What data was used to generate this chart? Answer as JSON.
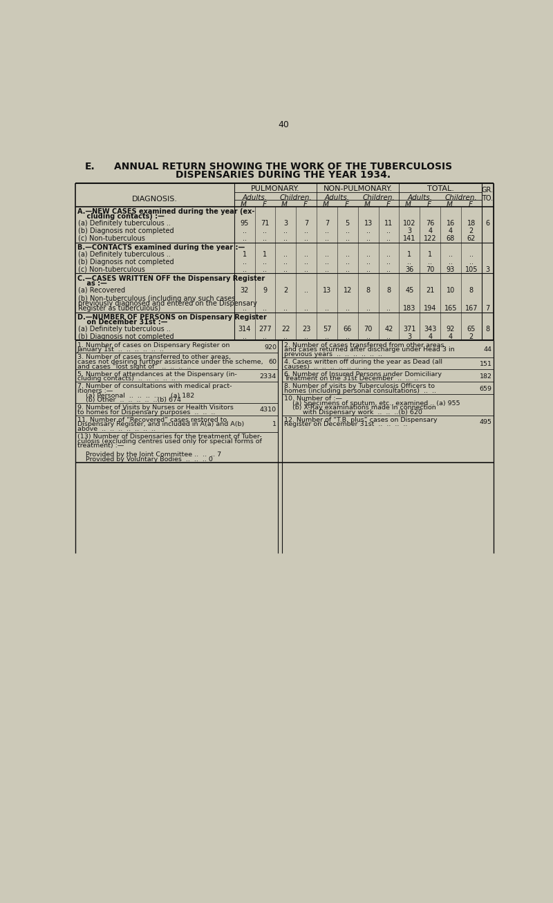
{
  "page_number": "40",
  "bg_color": "#ccc9b8",
  "text_color": "#1a1a1a",
  "title_e": "E.",
  "title_main": "ANNUAL RETURN SHOWING THE WORK OF THE TUBERCULOSIS",
  "title_sub": "DISPENSARIES DURING THE YEAR 1934.",
  "header_row1": [
    "PULMONARY.",
    "NON-PULMONARY.",
    "TOTAL."
  ],
  "header_row2": [
    "DIAGNOSIS.",
    "Adults.",
    "Children.",
    "Adults.",
    "Children.",
    "Adults.",
    "Children.",
    "GR.\nTO."
  ],
  "header_row3": [
    "M.",
    "F.",
    "M.",
    "F.",
    "M.",
    "F.",
    "M.",
    "F.",
    "M.",
    "F.",
    "M.",
    "F."
  ],
  "section_a": {
    "title1": "A.—NEW CASES examined during the year (ex-",
    "title2": "    cluding contacts) :—",
    "rows": [
      {
        "label": "(a) Definitely tuberculous ..",
        "vals": [
          "95",
          "71",
          "3",
          "7",
          "7",
          "5",
          "13",
          "11",
          "102",
          "76",
          "16",
          "18"
        ],
        "gr": "6"
      },
      {
        "label": "(b) Diagnosis not completed",
        "vals": [
          "..",
          "..",
          "..",
          "..",
          "..",
          "..",
          "..",
          "..",
          "3",
          "4",
          "4",
          "2"
        ],
        "gr": ""
      },
      {
        "label": "(c) Non-tuberculous",
        "vals": [
          "..",
          "..",
          "..",
          "..",
          "..",
          "..",
          "..",
          "..",
          "141",
          "122",
          "68",
          "62"
        ],
        "gr": ""
      }
    ]
  },
  "section_b": {
    "title1": "B.—CONTACTS examined during the year :—",
    "rows": [
      {
        "label": "(a) Definitely tuberculous ..",
        "vals": [
          "1",
          "1",
          "..",
          "..",
          "..",
          "..",
          "..",
          "..",
          "1",
          "1",
          "..",
          ".."
        ],
        "gr": ""
      },
      {
        "label": "(b) Diagnosis not completed",
        "vals": [
          "..",
          "..",
          "..",
          "..",
          "..",
          "..",
          "..",
          "..",
          "..",
          "..",
          "..",
          ".."
        ],
        "gr": ""
      },
      {
        "label": "(c) Non-tuberculous",
        "vals": [
          "..",
          "..",
          "..",
          "..",
          "..",
          "..",
          "..",
          "..",
          "36",
          "70",
          "93",
          "105"
        ],
        "gr": "3"
      }
    ]
  },
  "section_c": {
    "title1": "C.—CASES WRITTEN OFF the Dispensary Register",
    "title2": "    as :—",
    "rows": [
      {
        "label": "(a) Recovered",
        "vals": [
          "32",
          "9",
          "2",
          "..",
          "13",
          "12",
          "8",
          "8",
          "45",
          "21",
          "10",
          "8"
        ],
        "gr": ""
      },
      {
        "label": "(b) Non-tuberculous (including any such cases",
        "label2": "previously diagnosed and entered on the Dispensary",
        "label3": "Register as tuberculous)",
        "vals": [
          "..",
          "..",
          "..",
          "..",
          "..",
          "..",
          "..",
          "..",
          "183",
          "194",
          "165",
          "167"
        ],
        "gr": "7"
      }
    ]
  },
  "section_d": {
    "title1": "D.—NUMBER OF PERSONS on Dispensary Register",
    "title2": "    on December 31st :—",
    "rows": [
      {
        "label": "(a) Definitely tuberculous ..",
        "vals": [
          "314",
          "277",
          "22",
          "23",
          "57",
          "66",
          "70",
          "42",
          "371",
          "343",
          "92",
          "65"
        ],
        "gr": "8"
      },
      {
        "label": "(b) Diagnosis not completed",
        "vals": [
          "..",
          "..",
          "..",
          "..",
          "..",
          "..",
          "..",
          "..",
          "3",
          "4",
          "4",
          "2"
        ],
        "gr": ""
      }
    ]
  },
  "bottom_left": [
    {
      "num": "1.",
      "lines": [
        "Number of cases on Dispensary Register on",
        "January 1st  ..  ..  ..  ..  ..  .."
      ],
      "value": "920"
    },
    {
      "num": "3.",
      "lines": [
        "Number of cases transferred to other areas,",
        "cases not desiring further assistance under the scheme,",
        "and cases “lost sight of”  ..  ..  ..  .."
      ],
      "value": "60"
    },
    {
      "num": "5.",
      "lines": [
        "Number of attendances at the Dispensary (in-",
        "cluding contacts)  ..  ..  ..  ..  .."
      ],
      "value": "2334"
    },
    {
      "num": "7.",
      "lines": [
        "Number of consultations with medical pract-",
        "itioners :—",
        "    (a) Personal  ..  ..  ..  ..  ..  (a) 182",
        "    (b) Other  ..  ..  ..  ..  ..(b) 674"
      ],
      "value": ""
    },
    {
      "num": "9.",
      "lines": [
        "Number of Visits by Nurses or Health Visitors",
        "to homes for Dispensary purposes  ..  ..  .."
      ],
      "value": "4310"
    },
    {
      "num": "11.",
      "lines": [
        "Number of “Recovered” cases restored to",
        "Dispensary Register, and included in A(a) and A(b)",
        "above  ..  ..  ..  ..  ..  ..  .."
      ],
      "value": "1"
    },
    {
      "num": "(13)",
      "lines": [
        "Number of Dispensaries for the treatment of Tuber-",
        "culosis (excluding centres used only for special forms of",
        "treatment) :—",
        "",
        "    Provided by the Joint Committee ..  ..  .. 7",
        "    Provided by Voluntary Bodies  ..  ..  .. 0"
      ],
      "value": ""
    }
  ],
  "bottom_right": [
    {
      "num": "2.",
      "lines": [
        "Number of cases transferred from other areas",
        "and cases returned after discharge under Head 3 in",
        "previous years  ..  ..  ..  ..  ..  .."
      ],
      "value": "44"
    },
    {
      "num": "4.",
      "lines": [
        "Cases written off during the year as Dead (all",
        "causes)  ..  ..  ..  ..  ..  ..  .."
      ],
      "value": "151"
    },
    {
      "num": "6.",
      "lines": [
        "Number of Insured Persons under Domiciliary",
        "Treatment on the 31st December  ..  ..  .."
      ],
      "value": "182"
    },
    {
      "num": "8.",
      "lines": [
        "Number of visits by Tuberculosis Officers to",
        "homes (including personal consultations)  ..  .."
      ],
      "value": "659"
    },
    {
      "num": "10.",
      "lines": [
        "Number of :—",
        "    (a) Specimens of sputum, etc., examined .. (a) 955",
        "    (b) X-Ray examinations made in connection",
        "         with Dispensary work  ..  ..  ..(b) 620"
      ],
      "value": ""
    },
    {
      "num": "12.",
      "lines": [
        "Number of “T.B. plus” cases on Dispensary",
        "Register on December 31st  ..  ..  ..  .."
      ],
      "value": "495"
    }
  ]
}
